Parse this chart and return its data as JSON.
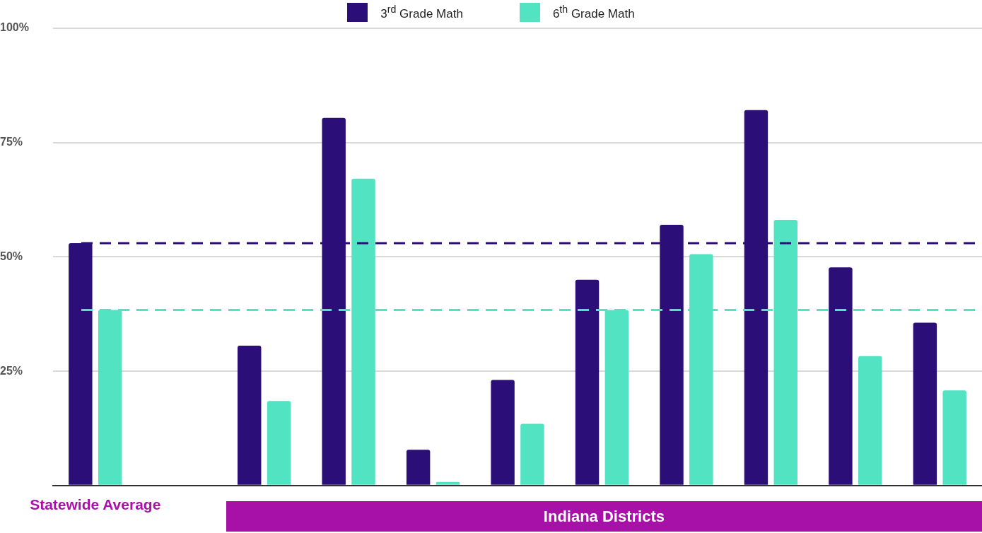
{
  "chart_data": {
    "type": "bar",
    "categories": [
      "Statewide Average",
      null,
      null,
      null,
      null,
      null,
      null,
      null,
      null,
      null,
      null
    ],
    "series": [
      {
        "name": "3$^{rd}$ Grade Math",
        "color": "#2b0e78",
        "values": [
          53,
          null,
          30.6,
          80.4,
          7.8,
          23.1,
          45,
          57,
          82.1,
          47.7,
          35.6
        ]
      },
      {
        "name": "6$^{th}$ Grade Math",
        "color": "#52e3c2",
        "values": [
          38.4,
          null,
          18.5,
          67.1,
          0.8,
          13.5,
          38.4,
          50.6,
          58.1,
          28.3,
          20.8
        ]
      }
    ],
    "ylim": [
      0,
      100
    ],
    "yticks": [
      {
        "value": 0,
        "label": null
      },
      {
        "value": 25,
        "label": "25%"
      },
      {
        "value": 50,
        "label": "50%"
      },
      {
        "value": 75,
        "label": "75%"
      },
      {
        "value": 100,
        "label": "100%"
      }
    ],
    "grid": "y",
    "legend": "top",
    "ref_lines": [
      {
        "axis": "y",
        "value": 53,
        "color": "#2b0e78",
        "line_style": "dashed"
      },
      {
        "axis": "y",
        "value": 38.4,
        "color": "#52e3c2",
        "line_style": "dashed"
      }
    ],
    "annotations": [
      "Indiana Districts"
    ]
  }
}
